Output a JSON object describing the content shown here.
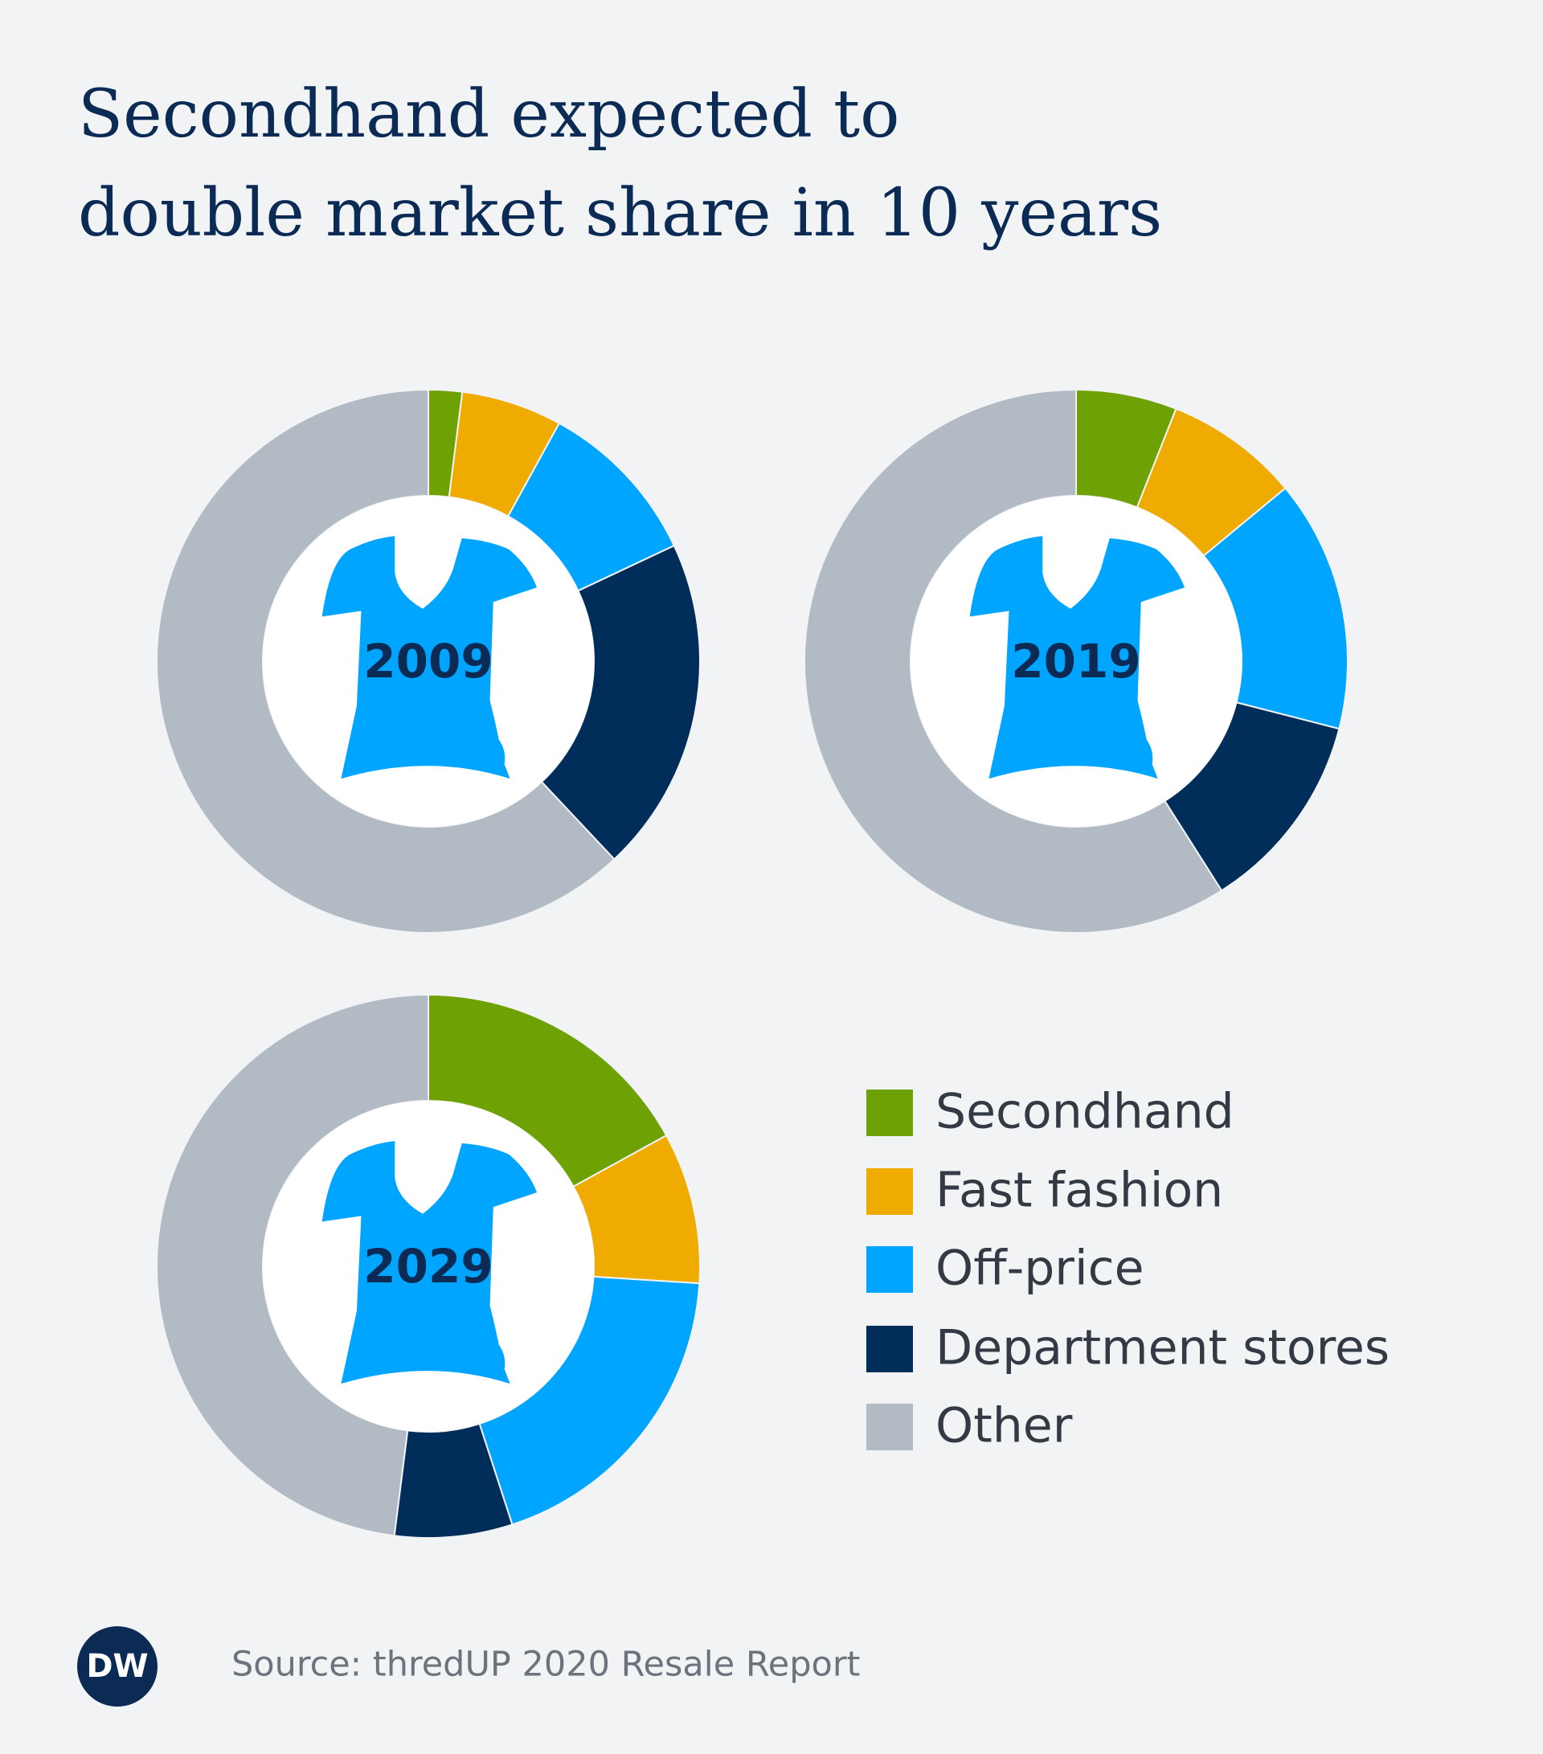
{
  "title_lines": [
    "Secondhand expected to",
    "double market share in 10 years"
  ],
  "legend": {
    "categories": [
      "Secondhand",
      "Fast fashion",
      "Off-price",
      "Department stores",
      "Other"
    ],
    "colors": [
      "#6ea204",
      "#f0ab00",
      "#00a5ff",
      "#002d5a",
      "#b2bbc4"
    ]
  },
  "chart_data": [
    {
      "type": "donut",
      "title": "2009",
      "values": [
        2,
        6,
        10,
        20,
        62
      ]
    },
    {
      "type": "donut",
      "title": "2019",
      "values": [
        6,
        8,
        15,
        12,
        59
      ]
    },
    {
      "type": "donut",
      "title": "2029",
      "values": [
        17,
        9,
        19,
        7,
        48
      ]
    }
  ],
  "source": "Source: thredUP 2020 Resale Report",
  "logo": "DW"
}
